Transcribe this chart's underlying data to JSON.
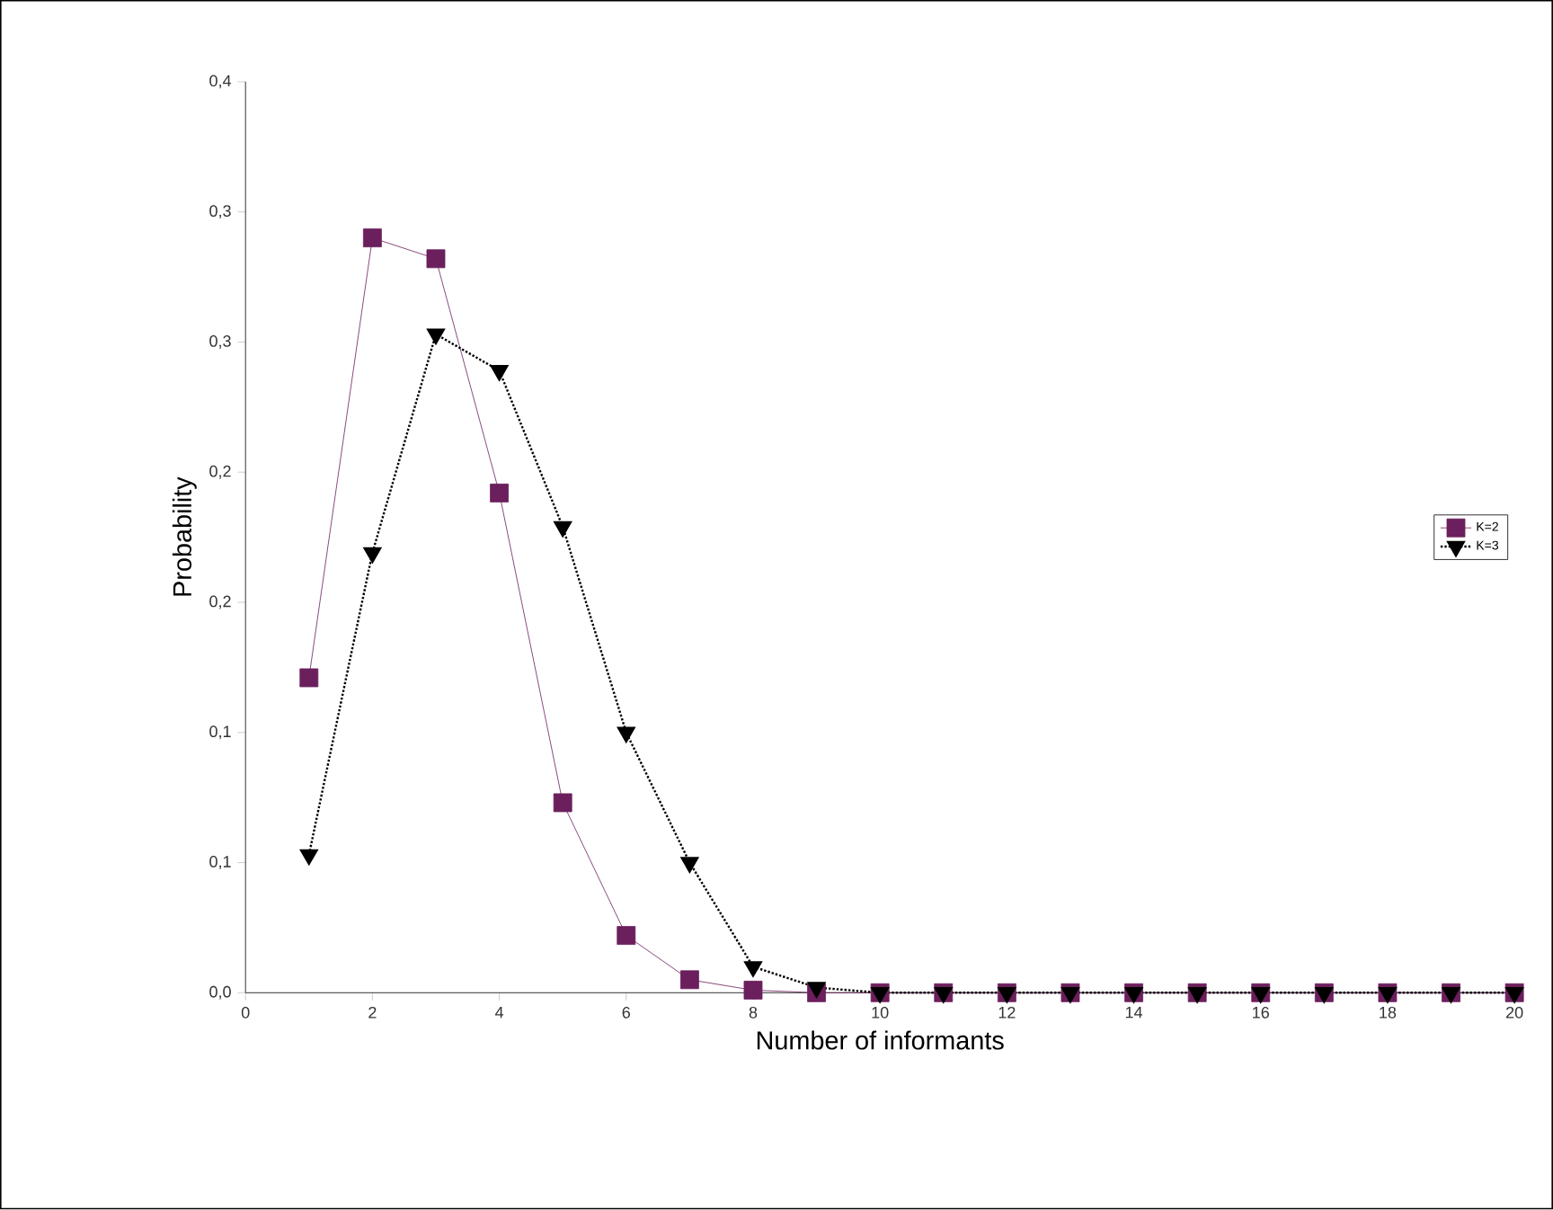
{
  "chart_data": {
    "type": "line",
    "xlabel": "Number of informants",
    "ylabel": "Probability",
    "x": [
      1,
      2,
      3,
      4,
      5,
      6,
      7,
      8,
      9,
      10,
      11,
      12,
      13,
      14,
      15,
      16,
      17,
      18,
      19,
      20
    ],
    "series": [
      {
        "name": "K=2",
        "color": "#6b1f5c",
        "marker": "square",
        "line_style": "solid",
        "values": [
          0.121,
          0.29,
          0.282,
          0.192,
          0.073,
          0.022,
          0.005,
          0.001,
          0,
          0,
          0,
          0,
          0,
          0,
          0,
          0,
          0,
          0,
          0,
          0
        ]
      },
      {
        "name": "K=3",
        "color": "#000000",
        "marker": "triangle",
        "line_style": "dotted",
        "values": [
          0.053,
          0.169,
          0.253,
          0.239,
          0.179,
          0.1,
          0.05,
          0.01,
          0.002,
          0,
          0,
          0,
          0,
          0,
          0,
          0,
          0,
          0,
          0,
          0
        ]
      }
    ],
    "xlim": [
      0,
      20
    ],
    "ylim": [
      0,
      0.35
    ],
    "xticks": [
      0,
      2,
      4,
      6,
      8,
      10,
      12,
      14,
      16,
      18,
      20
    ],
    "yticks": [
      {
        "value": 0,
        "label": "0,0"
      },
      {
        "value": 0.05,
        "label": "0,1"
      },
      {
        "value": 0.1,
        "label": "0,1"
      },
      {
        "value": 0.15,
        "label": "0,2"
      },
      {
        "value": 0.2,
        "label": "0,2"
      },
      {
        "value": 0.25,
        "label": "0,3"
      },
      {
        "value": 0.3,
        "label": "0,3"
      },
      {
        "value": 0.35,
        "label": "0,4"
      }
    ],
    "grid": false,
    "legend": "right"
  }
}
